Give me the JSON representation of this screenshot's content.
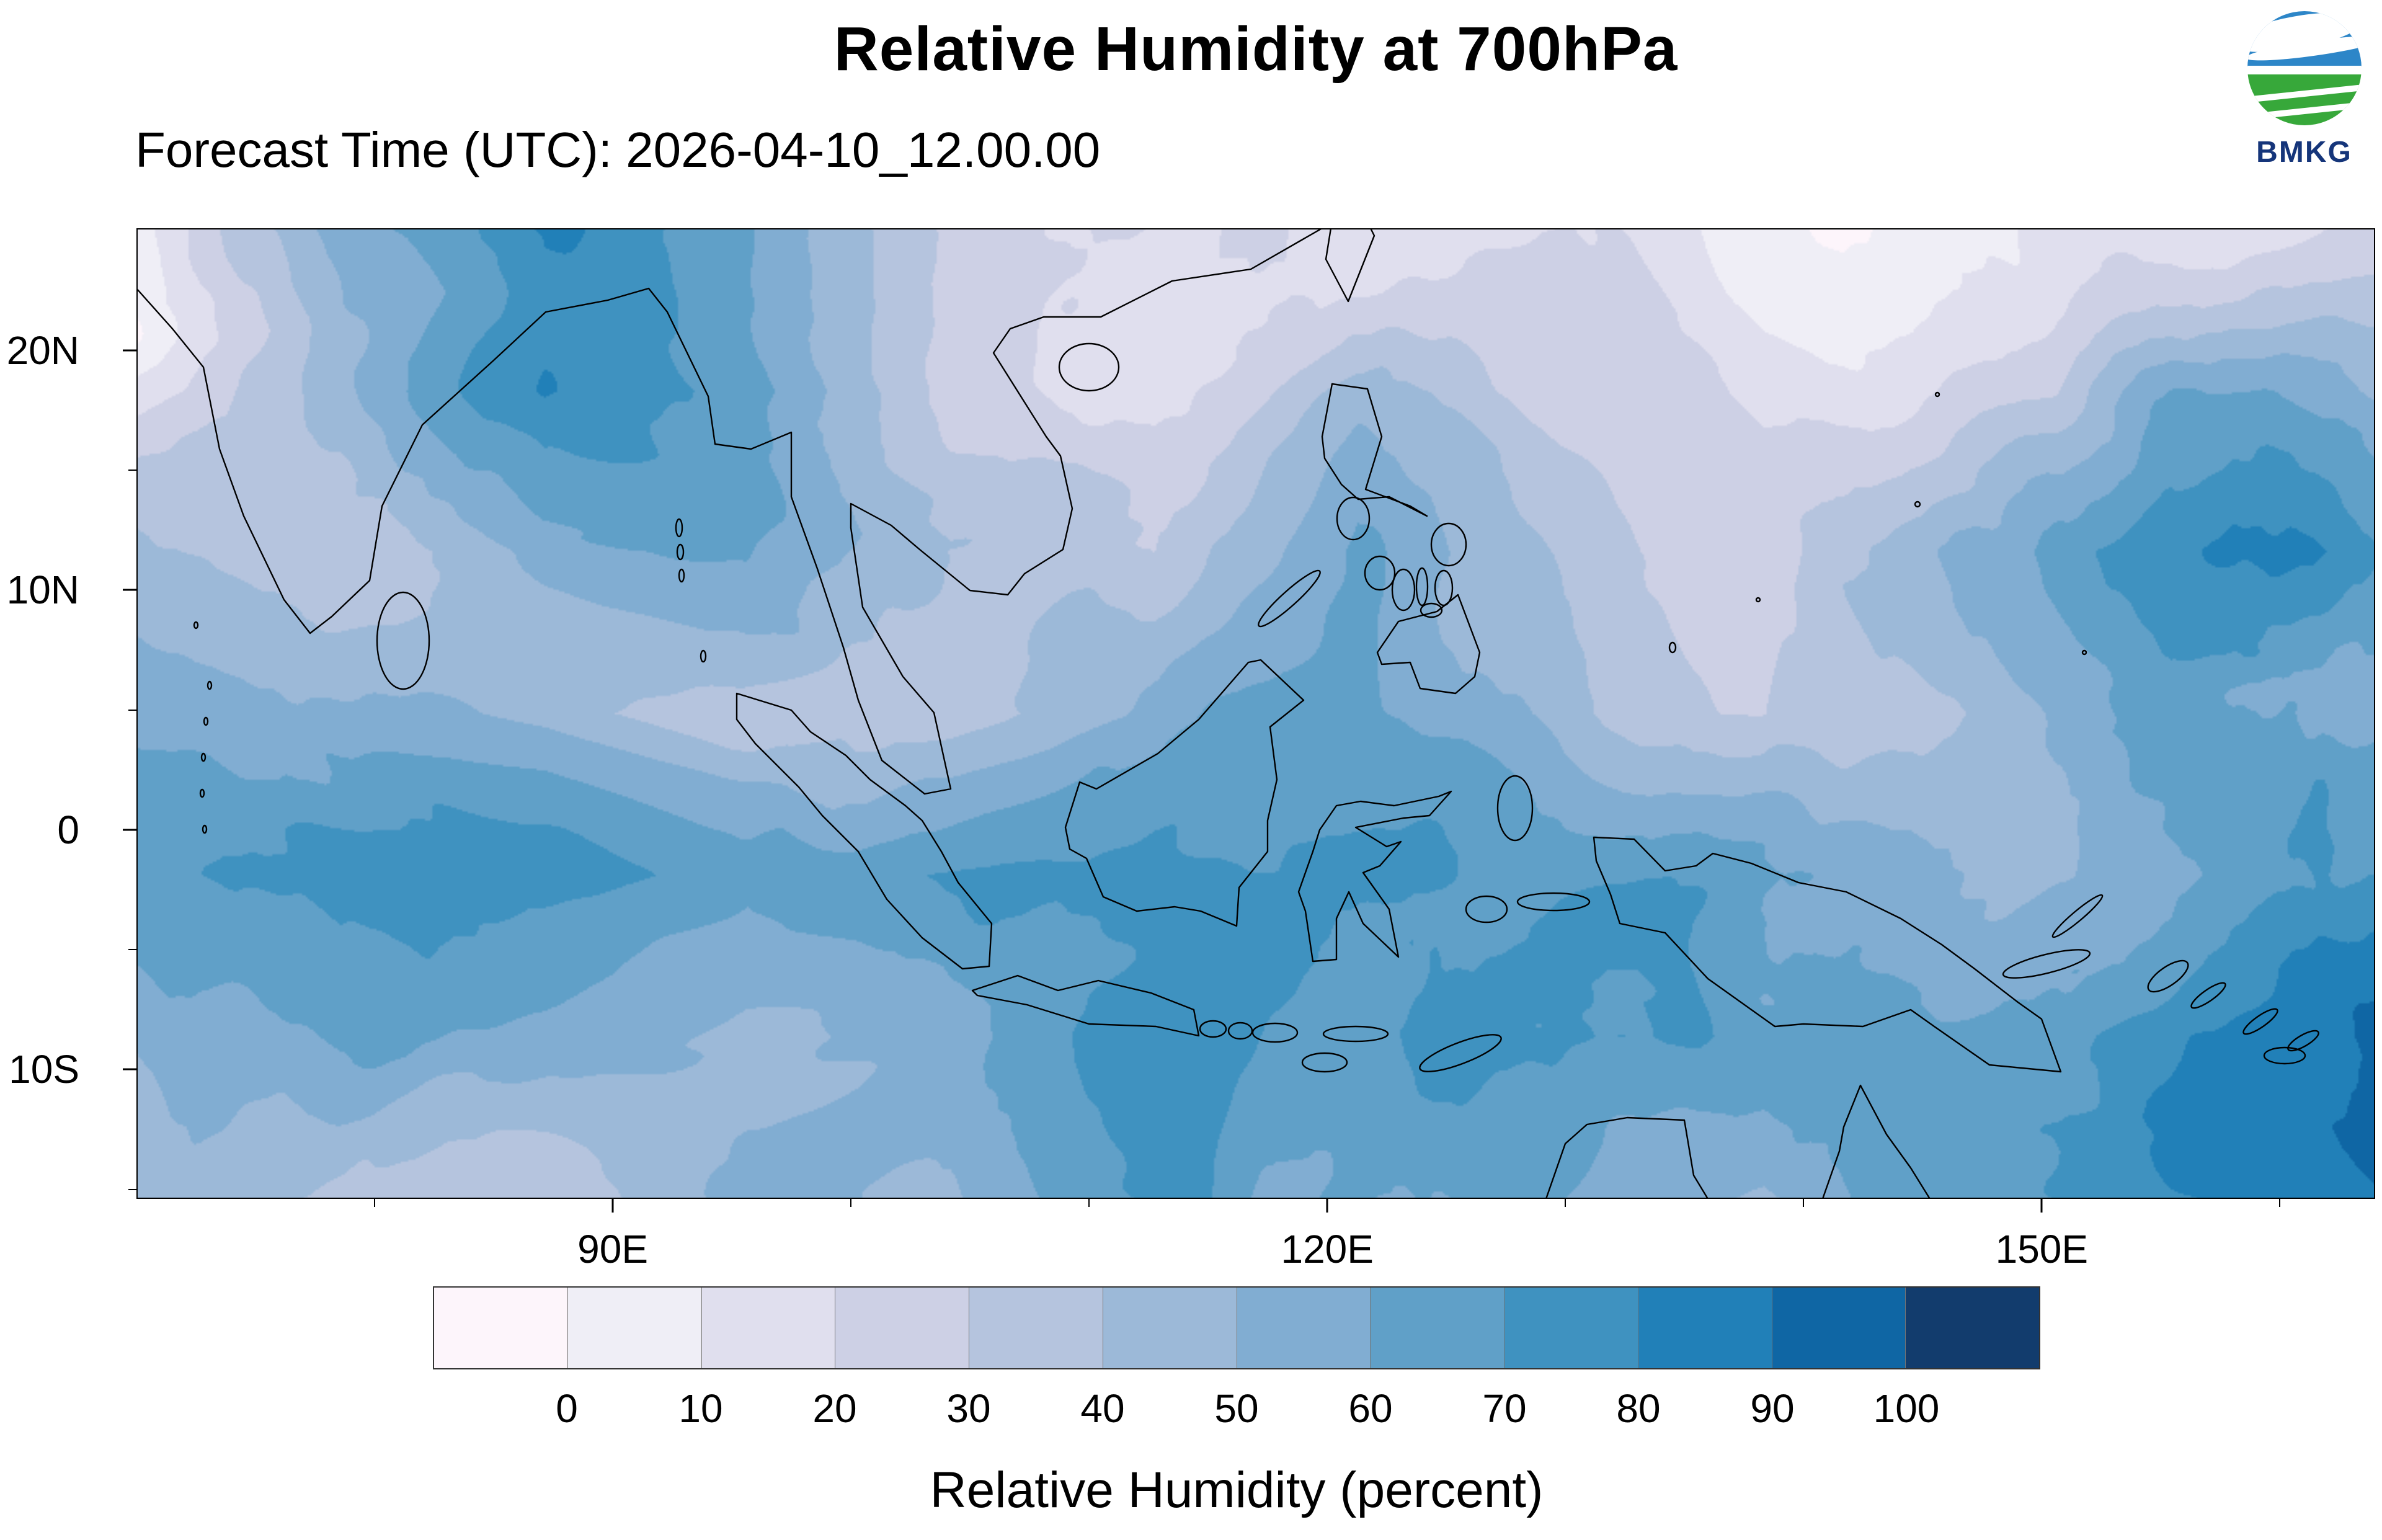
{
  "header": {
    "title": "Relative Humidity at 700hPa",
    "forecast_label": "Forecast Time (UTC): 2026-04-10_12.00.00",
    "logo_text": "BMKG"
  },
  "axes": {
    "lat_ticks": [
      {
        "deg": 20,
        "label": "20N"
      },
      {
        "deg": 10,
        "label": "10N"
      },
      {
        "deg": 0,
        "label": "0"
      },
      {
        "deg": -10,
        "label": "10S"
      }
    ],
    "lat_minor_ticks": [
      15,
      5,
      -5,
      -15
    ],
    "lon_ticks": [
      {
        "deg": 90,
        "label": "90E"
      },
      {
        "deg": 120,
        "label": "120E"
      },
      {
        "deg": 150,
        "label": "150E"
      }
    ],
    "lon_minor_ticks": [
      80,
      100,
      110,
      130,
      140,
      160
    ]
  },
  "colorbar": {
    "tick_labels": [
      "0",
      "10",
      "20",
      "30",
      "40",
      "50",
      "60",
      "70",
      "80",
      "90",
      "100"
    ],
    "title": "Relative Humidity (percent)"
  },
  "chart_data": {
    "type": "heatmap",
    "title": "Relative Humidity at 700hPa",
    "forecast_time_utc": "2026-04-10_12.00.00",
    "variable": "Relative Humidity",
    "units": "percent",
    "pressure_level_hpa": 700,
    "agency": "BMKG",
    "lon_range_deg_e": [
      70,
      164
    ],
    "lat_range_deg_n": [
      25.1,
      -15.4
    ],
    "lon_tick_labels": [
      "90E",
      "120E",
      "150E"
    ],
    "lat_tick_labels": [
      "20N",
      "10N",
      "0",
      "10S"
    ],
    "contour_levels_percent": [
      0,
      10,
      20,
      30,
      40,
      50,
      60,
      70,
      80,
      90,
      100
    ],
    "palette": [
      "#fdf5fb",
      "#efeef6",
      "#e0dfee",
      "#cdd0e5",
      "#b5c4de",
      "#9cb9d8",
      "#81add2",
      "#60a0c8",
      "#3f92c0",
      "#2180b8",
      "#0f66a4",
      "#123c6d"
    ],
    "legend_position": "bottom",
    "grid": "off",
    "coarse_grid_note": "Estimated relative humidity (%) read from the filled contours on a coarse 12x7 grid; rows run north (25.1N) to south (15.4S), columns run west (70E) to east (164E).",
    "coarse_grid_rh_percent": [
      [
        15,
        60,
        85,
        75,
        45,
        25,
        15,
        15,
        10,
        10,
        15,
        20
      ],
      [
        25,
        45,
        80,
        80,
        45,
        20,
        35,
        15,
        10,
        25,
        55,
        35
      ],
      [
        35,
        25,
        45,
        55,
        30,
        25,
        55,
        30,
        15,
        55,
        85,
        70
      ],
      [
        55,
        45,
        40,
        30,
        25,
        45,
        60,
        45,
        25,
        45,
        75,
        65
      ],
      [
        70,
        75,
        70,
        55,
        70,
        75,
        70,
        75,
        70,
        60,
        55,
        70
      ],
      [
        55,
        65,
        55,
        45,
        55,
        70,
        75,
        80,
        75,
        70,
        75,
        85
      ],
      [
        45,
        40,
        35,
        55,
        45,
        65,
        70,
        60,
        45,
        60,
        80,
        85
      ]
    ]
  }
}
